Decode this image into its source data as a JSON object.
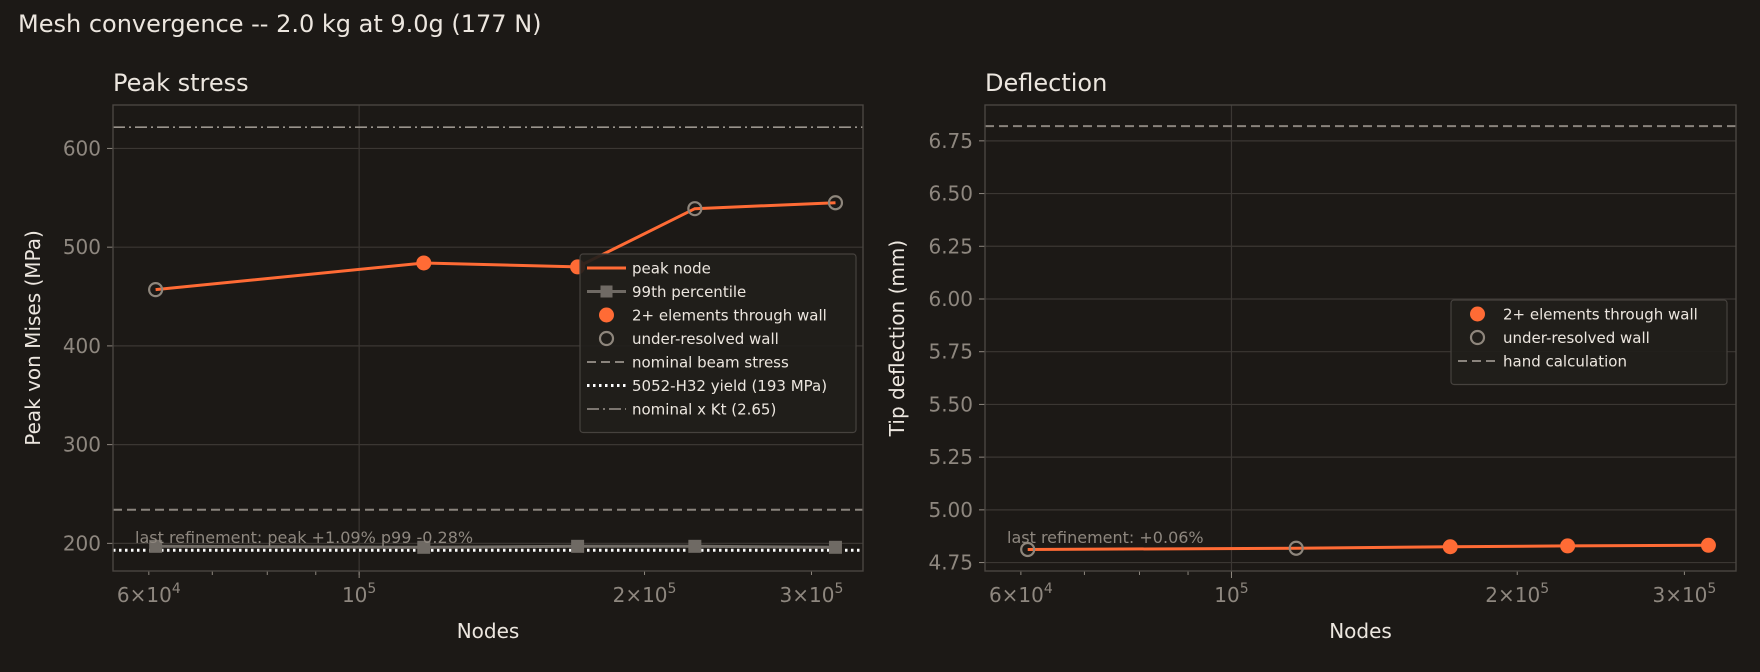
{
  "figure": {
    "title": "Mesh convergence -- 2.0 kg at 9.0g (177 N)"
  },
  "colors": {
    "background": "#1c1916",
    "text": "#ece6df",
    "tick": "#8e877f",
    "grid": "#3b3733",
    "spine": "#4a4642",
    "accent": "#ff6b35",
    "p99": "#6f6a64",
    "open_marker": "#8e867c",
    "nominal": "#8a847d",
    "yield": "#ffffff",
    "kt": "#9a948d",
    "legend_bg": "#211e1b",
    "legend_border": "#46423e",
    "annotation": "#8e877f"
  },
  "chart_data": [
    {
      "type": "line",
      "title": "Peak stress",
      "xlabel": "Nodes",
      "ylabel": "Peak von Mises (MPa)",
      "xscale": "log",
      "xlim": [
        55000,
        340000
      ],
      "ylim": [
        172,
        644
      ],
      "yticks": [
        200,
        300,
        400,
        500,
        600
      ],
      "xticks_major": [
        {
          "value": 100000,
          "base": "10",
          "exp": "5"
        }
      ],
      "xticks_labeled_minor": [
        {
          "value": 60000,
          "mant": "6",
          "base": "10",
          "exp": "4"
        },
        {
          "value": 200000,
          "mant": "2",
          "base": "10",
          "exp": "5"
        },
        {
          "value": 300000,
          "mant": "3",
          "base": "10",
          "exp": "5"
        }
      ],
      "grid": true,
      "x": [
        61000,
        117000,
        170000,
        226000,
        318000
      ],
      "series": [
        {
          "name": "peak node",
          "values": [
            457,
            484,
            480,
            539,
            545
          ]
        },
        {
          "name": "99th percentile",
          "values": [
            197,
            196,
            197,
            197,
            196
          ]
        }
      ],
      "resolved": [
        false,
        true,
        true,
        false,
        false
      ],
      "reference_lines": [
        {
          "name": "nominal beam stress",
          "y": 234,
          "style": "dashed"
        },
        {
          "name": "5052-H32 yield (193 MPa)",
          "y": 193,
          "style": "dotted"
        },
        {
          "name": "nominal x Kt (2.65)",
          "y": 621.5,
          "style": "dashdot"
        }
      ],
      "annotation": "last refinement:  peak +1.09%   p99 -0.28%",
      "legend": {
        "position": "center-right",
        "entries": [
          {
            "label": "peak node",
            "kind": "line"
          },
          {
            "label": "99th percentile",
            "kind": "line-square"
          },
          {
            "label": "2+ elements through wall",
            "kind": "filled-dot"
          },
          {
            "label": "under-resolved wall",
            "kind": "open-dot"
          },
          {
            "label": "nominal beam stress",
            "kind": "dashed"
          },
          {
            "label": "5052-H32 yield (193 MPa)",
            "kind": "dotted"
          },
          {
            "label": "nominal x Kt (2.65)",
            "kind": "dashdot"
          }
        ]
      }
    },
    {
      "type": "line",
      "title": "Deflection",
      "xlabel": "Nodes",
      "ylabel": "Tip deflection (mm)",
      "xscale": "log",
      "xlim": [
        55000,
        340000
      ],
      "ylim": [
        4.71,
        6.92
      ],
      "yticks": [
        4.75,
        5.0,
        5.25,
        5.5,
        5.75,
        6.0,
        6.25,
        6.5,
        6.75
      ],
      "ytick_labels": [
        "4.75",
        "5.00",
        "5.25",
        "5.50",
        "5.75",
        "6.00",
        "6.25",
        "6.50",
        "6.75"
      ],
      "xticks_major": [
        {
          "value": 100000,
          "base": "10",
          "exp": "5"
        }
      ],
      "xticks_labeled_minor": [
        {
          "value": 60000,
          "mant": "6",
          "base": "10",
          "exp": "4"
        },
        {
          "value": 200000,
          "mant": "2",
          "base": "10",
          "exp": "5"
        },
        {
          "value": 300000,
          "mant": "3",
          "base": "10",
          "exp": "5"
        }
      ],
      "grid": true,
      "x": [
        61000,
        117000,
        170000,
        226000,
        318000
      ],
      "series": [
        {
          "name": "tip deflection",
          "values": [
            4.812,
            4.818,
            4.825,
            4.829,
            4.832
          ]
        }
      ],
      "resolved": [
        false,
        false,
        true,
        true,
        true
      ],
      "reference_lines": [
        {
          "name": "hand calculation",
          "y": 6.82,
          "style": "dashed"
        }
      ],
      "annotation": "last refinement: +0.06%",
      "legend": {
        "position": "center-right",
        "entries": [
          {
            "label": "2+ elements through wall",
            "kind": "filled-dot"
          },
          {
            "label": "under-resolved wall",
            "kind": "open-dot"
          },
          {
            "label": "hand calculation",
            "kind": "dashed"
          }
        ]
      }
    }
  ]
}
